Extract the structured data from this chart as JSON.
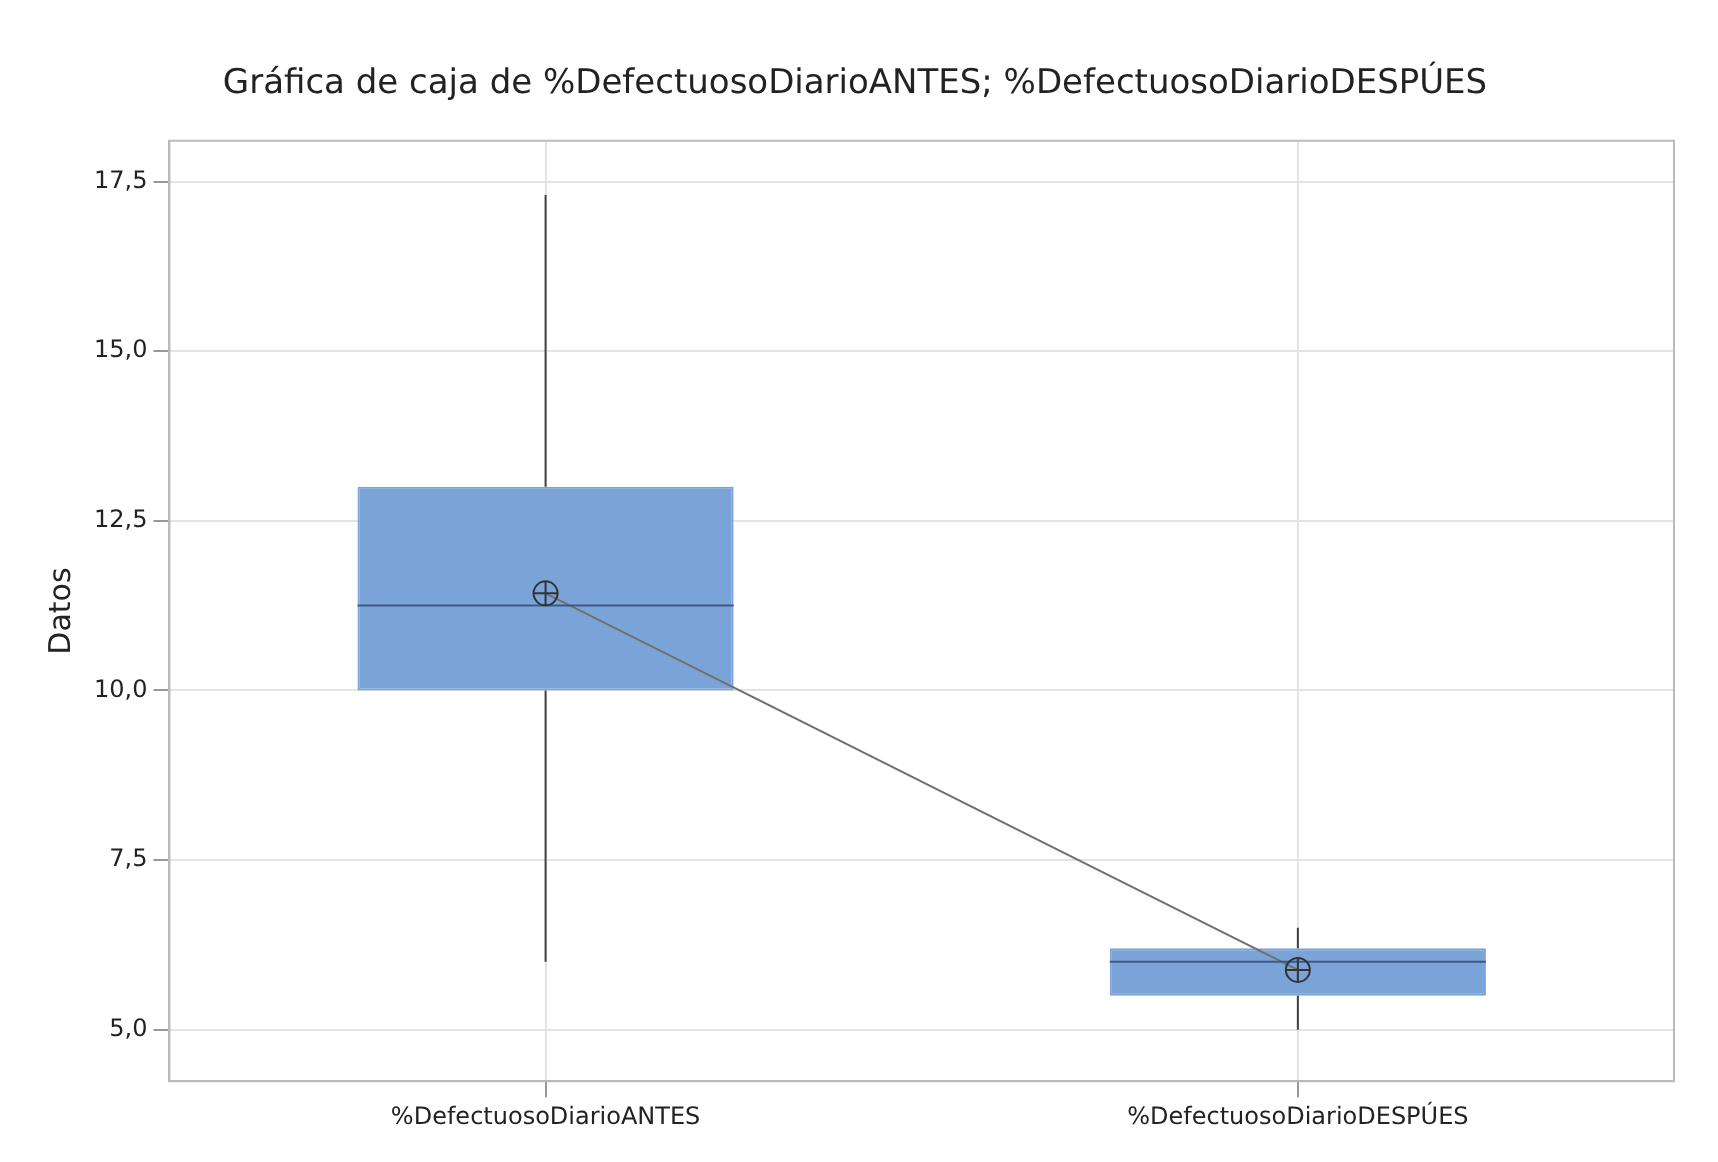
{
  "chart_data": {
    "type": "box",
    "title": "Gráfica de caja de %DefectuosoDiarioANTES; %DefectuosoDiarioDESPÚES",
    "ylabel": "Datos",
    "categories": [
      "%DefectuosoDiarioANTES",
      "%DefectuosoDiarioDESPÚES"
    ],
    "series": [
      {
        "color": "#7aa3d8",
        "boxes": [
          {
            "low": 6.0,
            "q1": 10.0,
            "median": 11.25,
            "q3": 13.0,
            "high": 17.3,
            "mean": 11.43
          },
          {
            "low": 5.0,
            "q1": 5.5,
            "median": 6.0,
            "q3": 6.2,
            "high": 6.5,
            "mean": 5.88
          }
        ]
      },
      {
        "type": "line",
        "color": "#707070",
        "values": [
          11.43,
          5.88
        ],
        "marker": "none"
      }
    ],
    "ylim": [
      4.24,
      18.1
    ],
    "yticks": [
      {
        "value": 5,
        "label": "5,0"
      },
      {
        "value": 7.5,
        "label": "7,5"
      },
      {
        "value": 10,
        "label": "10,0"
      },
      {
        "value": 12.5,
        "label": "12,5"
      },
      {
        "value": 15,
        "label": "15,0"
      },
      {
        "value": 17.5,
        "label": "17,5"
      }
    ],
    "grid": true,
    "legend": false
  }
}
